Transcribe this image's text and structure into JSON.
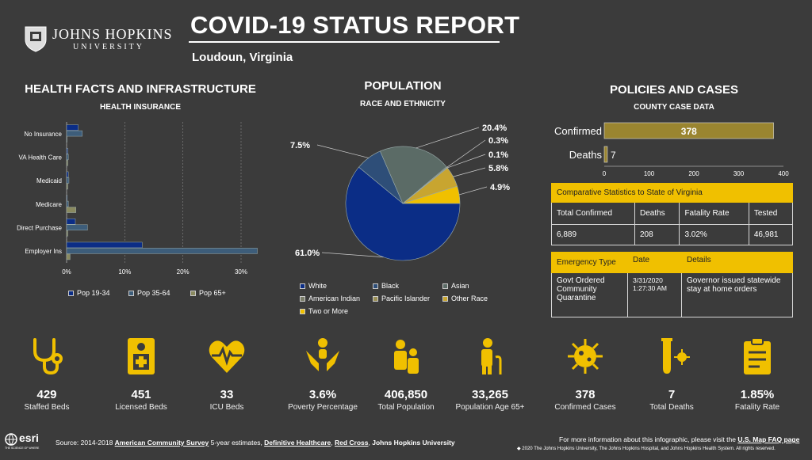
{
  "header": {
    "university_name": "JOHNS HOPKINS",
    "university_sub": "UNIVERSITY",
    "title": "COVID-19 STATUS REPORT",
    "location": "Loudoun,  Virginia"
  },
  "health": {
    "heading": "HEALTH FACTS AND INFRASTRUCTURE",
    "subheading": "HEALTH INSURANCE",
    "legend": [
      "Pop 19-34",
      "Pop 35-64",
      "Pop 65+"
    ]
  },
  "population": {
    "heading": "POPULATION",
    "subheading": "RACE AND ETHNICITY",
    "legend": [
      "White",
      "Black",
      "Asian",
      "American Indian",
      "Pacific Islander",
      "Other Race",
      "Two or More"
    ]
  },
  "policies": {
    "heading": "POLICIES AND CASES",
    "subheading": "COUNTY CASE DATA"
  },
  "comparative": {
    "title": "Comparative Statistics to State of Virginia",
    "headers": [
      "Total Confirmed",
      "Deaths",
      "Fatality Rate",
      "Tested"
    ],
    "values": [
      "6,889",
      "208",
      "3.02%",
      "46,981"
    ]
  },
  "emergency": {
    "headers": [
      "Emergency Type",
      "Date",
      "Details"
    ],
    "type": "Govt Ordered Community Quarantine",
    "date": "3/31/2020 1:27:30 AM",
    "details": "Governor issued statewide stay at home orders"
  },
  "stats": [
    {
      "icon": "stethoscope-icon",
      "value": "429",
      "label": "Staffed Beds"
    },
    {
      "icon": "licensed-bed-icon",
      "value": "451",
      "label": "Licensed Beds"
    },
    {
      "icon": "heartbeat-icon",
      "value": "33",
      "label": "ICU Beds"
    },
    {
      "icon": "hands-icon",
      "value": "3.6%",
      "label": "Poverty Percentage"
    },
    {
      "icon": "family-icon",
      "value": "406,850",
      "label": "Total Population"
    },
    {
      "icon": "elderly-icon",
      "value": "33,265",
      "label": "Population Age 65+"
    },
    {
      "icon": "virus-icon",
      "value": "378",
      "label": "Confirmed Cases"
    },
    {
      "icon": "test-tube-icon",
      "value": "7",
      "label": "Total Deaths"
    },
    {
      "icon": "clipboard-icon",
      "value": "1.85%",
      "label": "Fatality Rate"
    }
  ],
  "footer": {
    "esri": "esri",
    "esri_tag": "THE SCIENCE OF WHERE",
    "source_prefix": "Source: 2014-2018 ",
    "source_acs": "American Community Survey",
    "source_mid": " 5-year estimates, ",
    "source_dh": "Definitive Healthcare",
    "source_rc": "Red Cross",
    "source_jhu": "Johns Hopkins University",
    "more_info_prefix": "For more information about this infographic, please visit the ",
    "more_info_link": "U.S. Map FAQ page",
    "copyright": "◆ 2020 The Johns Hopkins University, The Johns Hopkins Hospital, and Johns Hopkins Health System. All rights reserved."
  },
  "colors": {
    "background": "#3b3b3b",
    "accent_yellow": "#f0c000",
    "navy": "#0b2d86",
    "steel_blue": "#3d5d7a",
    "gray_green": "#5b6b66",
    "olive": "#8a8a60",
    "gold": "#c8a530"
  },
  "chart_data": [
    {
      "type": "bar",
      "orientation": "horizontal",
      "title": "HEALTH INSURANCE",
      "categories": [
        "No Insurance",
        "VA Health Care",
        "Medicaid",
        "Medicare",
        "Direct Purchase",
        "Employer Ins"
      ],
      "series": [
        {
          "name": "Pop 19-34",
          "values": [
            2.0,
            0.2,
            0.3,
            0.1,
            1.5,
            13.0
          ],
          "color": "#0b2d86"
        },
        {
          "name": "Pop 35-64",
          "values": [
            2.7,
            0.3,
            0.4,
            0.3,
            3.6,
            32.8
          ],
          "color": "#3d5d7a"
        },
        {
          "name": "Pop 65+",
          "values": [
            0.0,
            0.2,
            0.2,
            1.6,
            0.2,
            0.6
          ],
          "color": "#8a8a60"
        }
      ],
      "xticks": [
        "0%",
        "10%",
        "20%",
        "30%"
      ],
      "xlim": [
        0,
        33
      ],
      "grid": true,
      "legend": "bottom"
    },
    {
      "type": "pie",
      "title": "RACE AND ETHNICITY",
      "labels": [
        "White",
        "Black",
        "Asian",
        "American Indian",
        "Pacific Islander",
        "Other Race",
        "Two or More"
      ],
      "values": [
        61.0,
        7.5,
        20.4,
        0.3,
        0.1,
        5.8,
        4.9
      ],
      "value_labels": [
        "61.0%",
        "7.5%",
        "20.4%",
        "0.3%",
        "0.1%",
        "5.8%",
        "4.9%"
      ],
      "colors": [
        "#0b2d86",
        "#2e4e78",
        "#5b6b66",
        "#7a7d6a",
        "#9a8f55",
        "#c8a530",
        "#f0c000"
      ],
      "legend": "bottom"
    },
    {
      "type": "bar",
      "orientation": "horizontal",
      "title": "COUNTY CASE DATA",
      "categories": [
        "Confirmed",
        "Deaths"
      ],
      "values": [
        378,
        7
      ],
      "value_labels": [
        "378",
        "7"
      ],
      "xticks": [
        "0",
        "100",
        "200",
        "300",
        "400"
      ],
      "xlim": [
        0,
        400
      ],
      "color": "#9a8530"
    }
  ]
}
